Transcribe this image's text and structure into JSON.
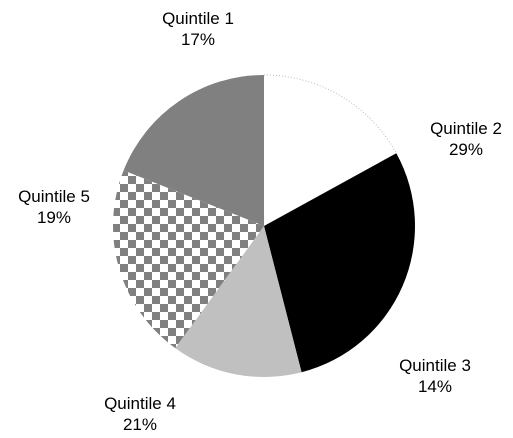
{
  "chart_data": {
    "type": "pie",
    "start_angle_deg": 0,
    "direction": "clockwise",
    "slices": [
      {
        "label": "Quintile 1",
        "value": 17,
        "value_label": "17%",
        "fill": "#ffffff",
        "pattern": "solid"
      },
      {
        "label": "Quintile 2",
        "value": 29,
        "value_label": "29%",
        "fill": "#000000",
        "pattern": "solid"
      },
      {
        "label": "Quintile 3",
        "value": 14,
        "value_label": "14%",
        "fill": "#c0c0c0",
        "pattern": "solid"
      },
      {
        "label": "Quintile 4",
        "value": 21,
        "value_label": "21%",
        "fill": "#808080",
        "pattern": "checkerboard"
      },
      {
        "label": "Quintile 5",
        "value": 19,
        "value_label": "19%",
        "fill": "#808080",
        "pattern": "solid"
      }
    ]
  }
}
